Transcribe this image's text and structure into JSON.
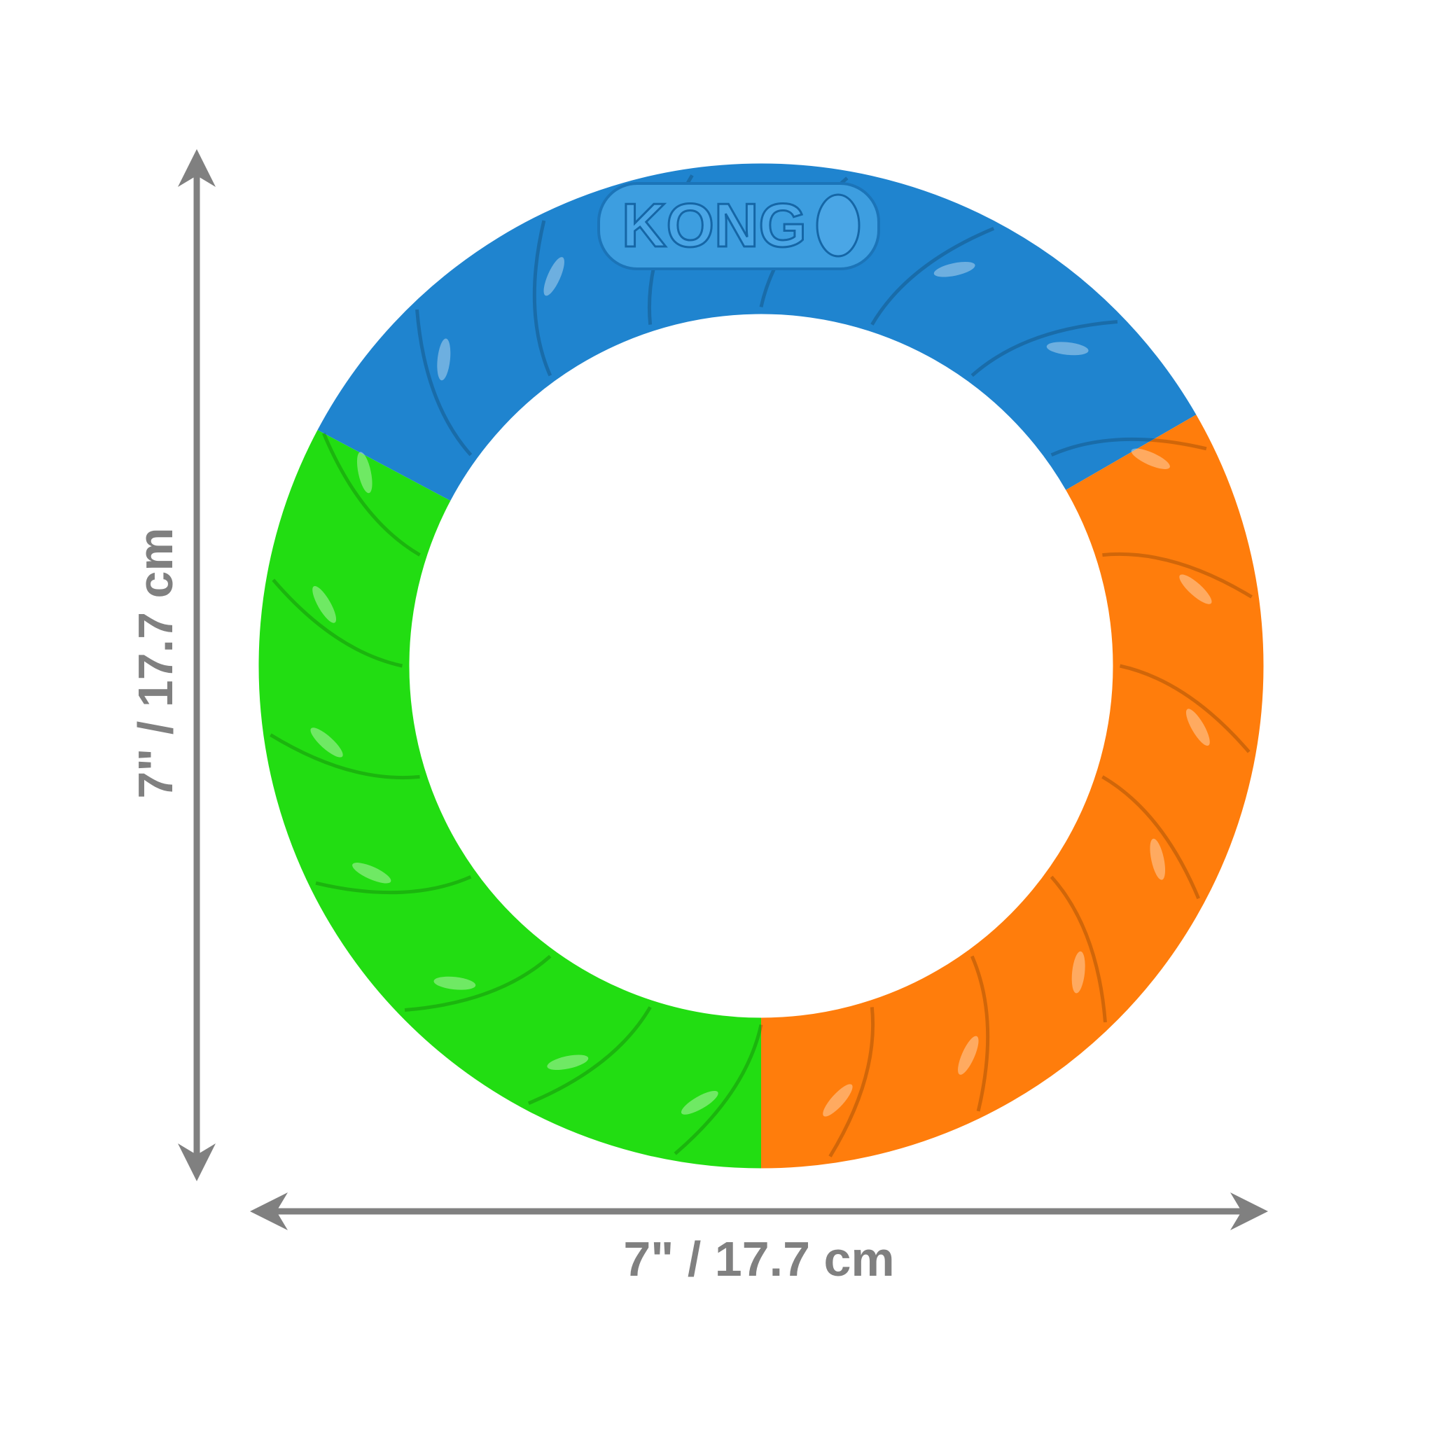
{
  "product": {
    "brand_logo": "KONG",
    "colors": {
      "blue": "#1f84cf",
      "green": "#22dd12",
      "orange": "#ff7d0c",
      "dimension": "#808080"
    }
  },
  "dimensions": {
    "width_label": "7\" / 17.7 cm",
    "height_label": "7\" / 17.7 cm"
  }
}
